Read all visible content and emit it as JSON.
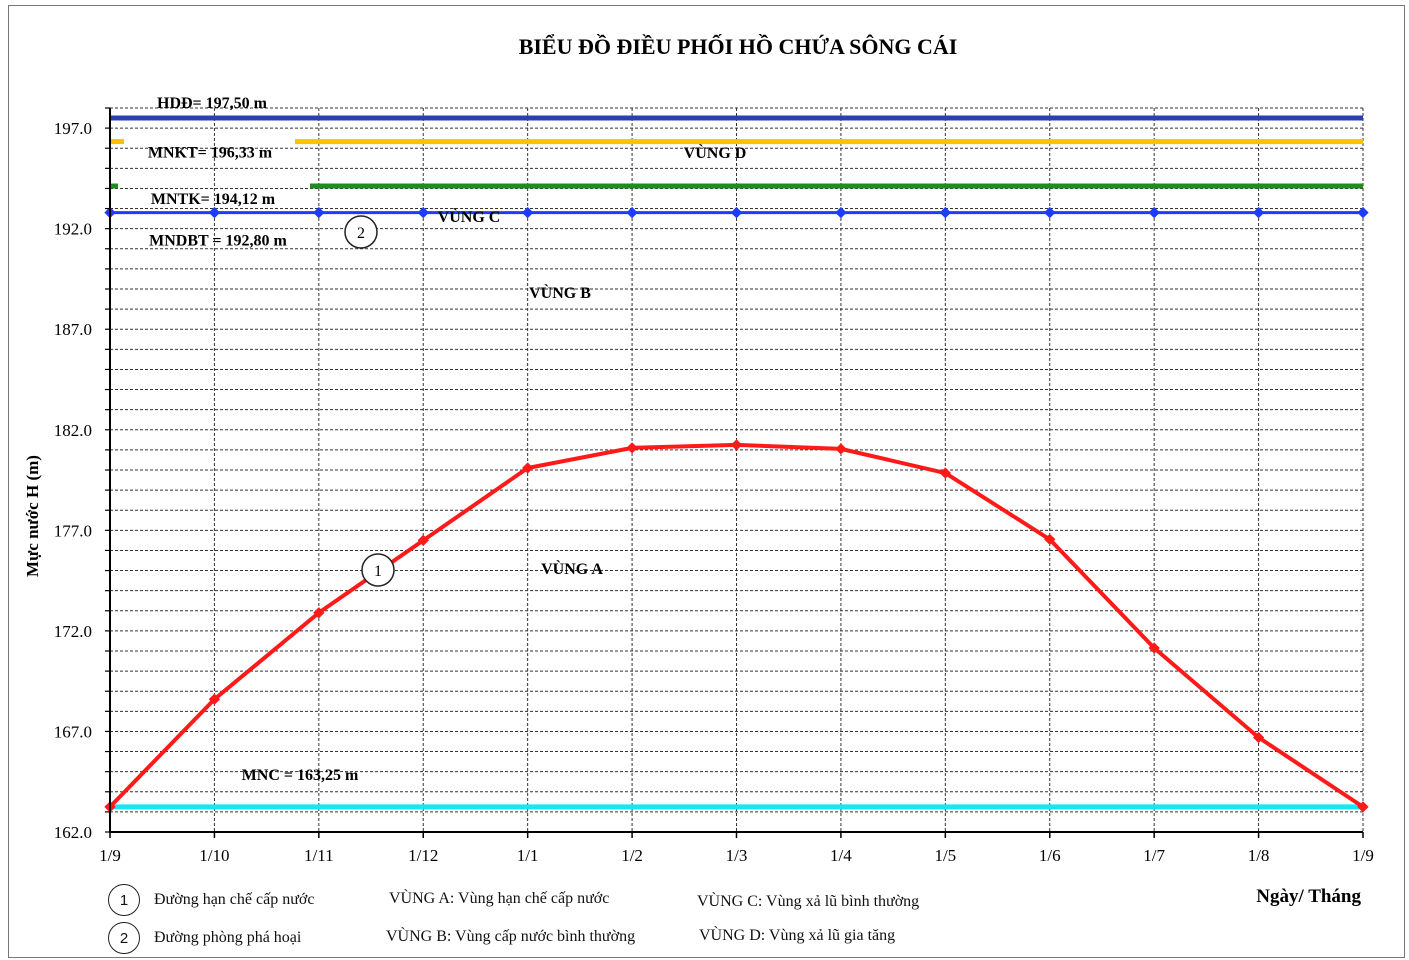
{
  "chart_data": {
    "type": "line",
    "title": "BIỂU ĐỒ ĐIỀU PHỐI HỒ CHỨA SÔNG CÁI",
    "ylabel": "Mực nước H (m)",
    "xlabel": "Ngày/ Tháng",
    "ylim": [
      162.0,
      198.0
    ],
    "yticks": [
      "162.0",
      "167.0",
      "172.0",
      "177.0",
      "182.0",
      "187.0",
      "192.0",
      "197.0"
    ],
    "categories": [
      "1/9",
      "1/10",
      "1/11",
      "1/12",
      "1/1",
      "1/2",
      "1/3",
      "1/4",
      "1/5",
      "1/6",
      "1/7",
      "1/8",
      "1/9"
    ],
    "grid": true,
    "series": [
      {
        "values": [
          163.25,
          168.6,
          172.9,
          176.5,
          180.1,
          181.1,
          181.25,
          181.05,
          179.85,
          176.55,
          171.15,
          166.7,
          163.25
        ],
        "color": "#ff1a1a"
      },
      {
        "values": [
          192.8,
          192.8,
          192.8,
          192.8,
          192.8,
          192.8,
          192.8,
          192.8,
          192.8,
          192.8,
          192.8,
          192.8,
          192.8
        ],
        "color": "#1e3cff"
      }
    ],
    "levels": [
      {
        "label": "HDĐ= 197,50 m",
        "value": 197.5,
        "color": "#2b3fb0"
      },
      {
        "label": "MNKT= 196,33 m",
        "value": 196.33,
        "color": "#ffc000"
      },
      {
        "label": "MNTK= 194,12 m",
        "value": 194.12,
        "color": "#1e8c1e"
      },
      {
        "label": "MNDBT = 192,80 m",
        "value": 192.8,
        "color": "#1e3cff"
      },
      {
        "label": "MNC = 163,25 m",
        "value": 163.25,
        "color": "#19e6f0"
      }
    ],
    "zones": [
      "VÙNG D",
      "VÙNG C",
      "VÙNG B",
      "VÙNG A"
    ],
    "markers": [
      "1",
      "2"
    ]
  },
  "legend": {
    "line1": {
      "num": "1",
      "text": "Đường hạn chế cấp nước"
    },
    "line2": {
      "num": "2",
      "text": "Đường phòng phá hoại"
    },
    "zoneA": "VÙNG A: Vùng hạn chế cấp nước",
    "zoneB": "VÙNG B: Vùng cấp nước bình thường",
    "zoneC": "VÙNG C: Vùng xả lũ bình thường",
    "zoneD": "VÙNG D: Vùng xả lũ gia tăng"
  }
}
